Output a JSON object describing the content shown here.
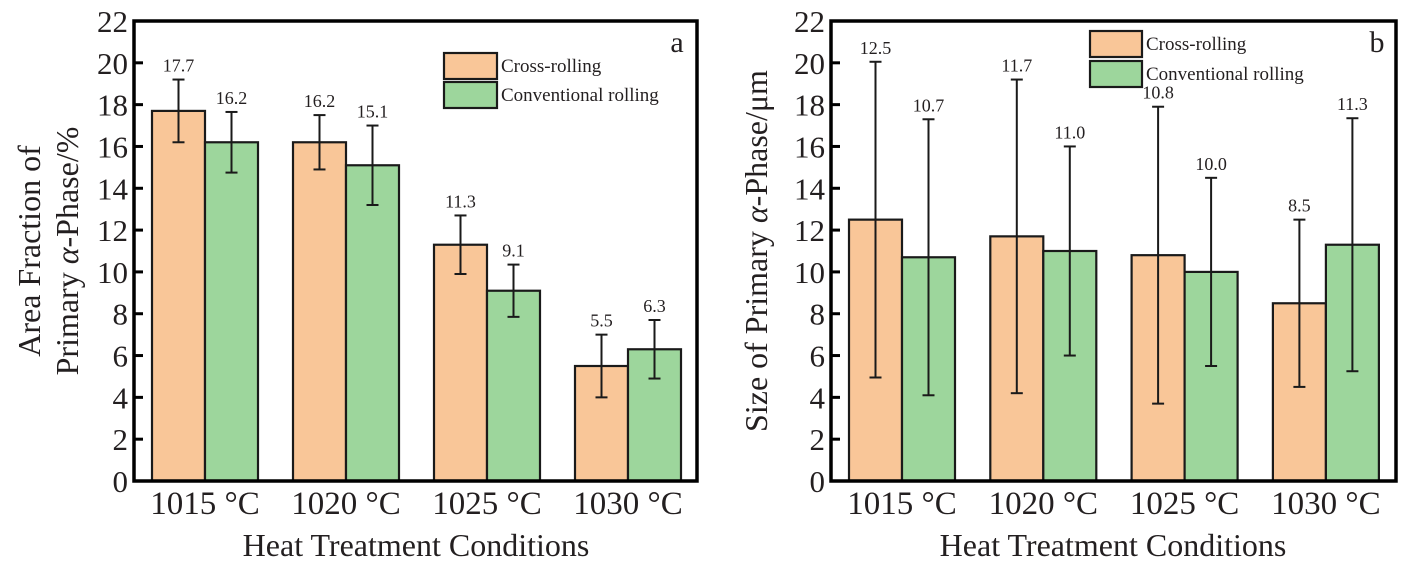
{
  "chart_data": [
    {
      "type": "bar",
      "panel": "a",
      "title": "",
      "xlabel": "Heat Treatment Conditions",
      "ylabel_line1": "Area Fraction of",
      "ylabel_line2_prefix": "Primary ",
      "ylabel_line2_symbol": "α",
      "ylabel_line2_suffix": "-Phase/%",
      "ylim": [
        0,
        22
      ],
      "yticks": [
        0,
        2,
        4,
        6,
        8,
        10,
        12,
        14,
        16,
        18,
        20,
        22
      ],
      "categories": [
        "1015 °C",
        "1020 °C",
        "1025 °C",
        "1030 °C"
      ],
      "legend_position": "top-right",
      "series": [
        {
          "name": "Cross-rolling",
          "color": "#F9C698",
          "values": [
            17.7,
            16.2,
            11.3,
            5.5
          ],
          "labels": [
            "17.7",
            "16.2",
            "11.3",
            "5.5"
          ],
          "error": [
            1.5,
            1.3,
            1.4,
            1.5
          ]
        },
        {
          "name": "Conventional rolling",
          "color": "#9DD69C",
          "values": [
            16.2,
            15.1,
            9.1,
            6.3
          ],
          "labels": [
            "16.2",
            "15.1",
            "9.1",
            "6.3"
          ],
          "error": [
            1.45,
            1.9,
            1.25,
            1.4
          ]
        }
      ]
    },
    {
      "type": "bar",
      "panel": "b",
      "title": "",
      "xlabel": "Heat Treatment Conditions",
      "ylabel_line1": "",
      "ylabel_line2_prefix": "Size of Primary ",
      "ylabel_line2_symbol": "α",
      "ylabel_line2_suffix": "-Phase/μm",
      "ylim": [
        0,
        22
      ],
      "yticks": [
        0,
        2,
        4,
        6,
        8,
        10,
        12,
        14,
        16,
        18,
        20,
        22
      ],
      "categories": [
        "1015 °C",
        "1020 °C",
        "1025 °C",
        "1030 °C"
      ],
      "legend_position": "top-right",
      "series": [
        {
          "name": "Cross-rolling",
          "color": "#F9C698",
          "values": [
            12.5,
            11.7,
            10.8,
            8.5
          ],
          "labels": [
            "12.5",
            "11.7",
            "10.8",
            "8.5"
          ],
          "error": [
            7.55,
            7.5,
            7.1,
            4.0
          ]
        },
        {
          "name": "Conventional rolling",
          "color": "#9DD69C",
          "values": [
            10.7,
            11.0,
            10.0,
            11.3
          ],
          "labels": [
            "10.7",
            "11.0",
            "10.0",
            "11.3"
          ],
          "error": [
            6.6,
            5.0,
            4.5,
            6.05
          ]
        }
      ]
    }
  ]
}
